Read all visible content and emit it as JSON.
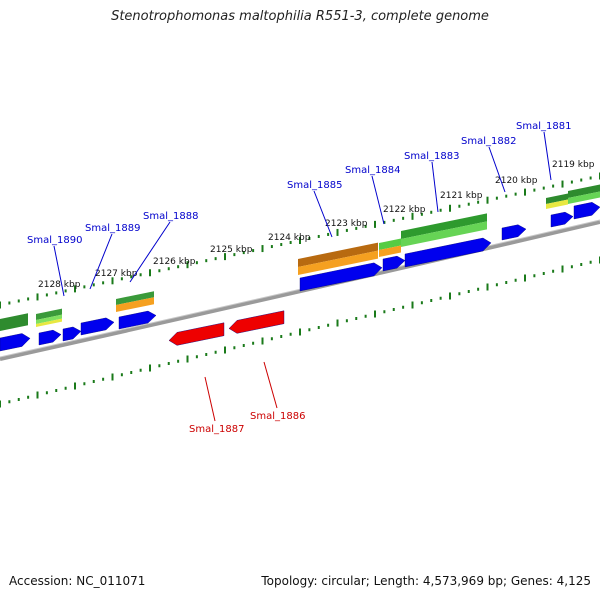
{
  "title": "Stenotrophomonas maltophilia R551-3, complete genome",
  "footer": {
    "accession": "Accession: NC_011071",
    "summary": "Topology: circular; Length: 4,573,969 bp; Genes: 4,125"
  },
  "colors": {
    "forward_gene": "#0000ee",
    "reverse_gene": "#ee0000",
    "forward_label": "#0000cc",
    "reverse_label": "#cc0000",
    "axis": "#808080",
    "tick": "#1a7a1a",
    "green_dark": "#3a9a3a",
    "green_light": "#55cc44",
    "orange": "#f5a020",
    "yellow": "#e8e840"
  },
  "position_labels": [
    {
      "text": "2119 kbp"
    },
    {
      "text": "2120 kbp"
    },
    {
      "text": "2121 kbp"
    },
    {
      "text": "2122 kbp"
    },
    {
      "text": "2123 kbp"
    },
    {
      "text": "2124 kbp"
    },
    {
      "text": "2125 kbp"
    },
    {
      "text": "2126 kbp"
    },
    {
      "text": "2127 kbp"
    },
    {
      "text": "2128 kbp"
    }
  ],
  "gene_labels": [
    {
      "text": "Smal_1881",
      "strand": "forward"
    },
    {
      "text": "Smal_1882",
      "strand": "forward"
    },
    {
      "text": "Smal_1883",
      "strand": "forward"
    },
    {
      "text": "Smal_1884",
      "strand": "forward"
    },
    {
      "text": "Smal_1885",
      "strand": "forward"
    },
    {
      "text": "Smal_1888",
      "strand": "forward"
    },
    {
      "text": "Smal_1889",
      "strand": "forward"
    },
    {
      "text": "Smal_1890",
      "strand": "forward"
    },
    {
      "text": "Smal_1886",
      "strand": "reverse"
    },
    {
      "text": "Smal_1887",
      "strand": "reverse"
    }
  ]
}
